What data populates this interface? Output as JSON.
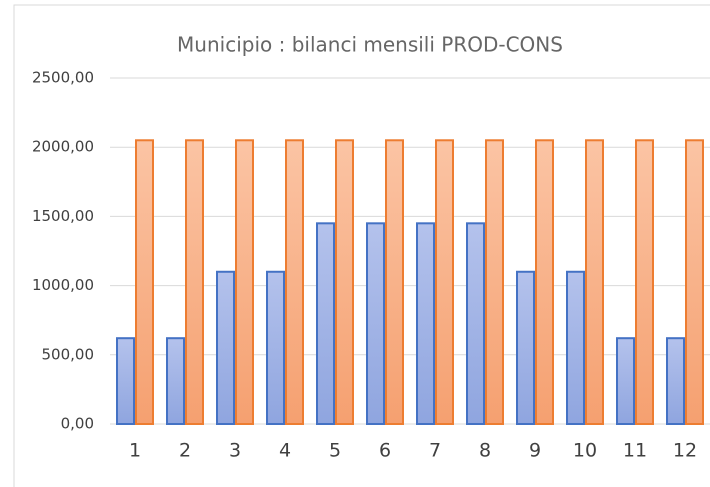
{
  "chart_data": {
    "type": "bar",
    "title": "Municipio : bilanci mensili PROD-CONS",
    "categories": [
      "1",
      "2",
      "3",
      "4",
      "5",
      "6",
      "7",
      "8",
      "9",
      "10",
      "11",
      "12"
    ],
    "series": [
      {
        "color": "#4472c4",
        "values": [
          620,
          620,
          1100,
          1100,
          1450,
          1450,
          1450,
          1450,
          1100,
          1100,
          620,
          620
        ]
      },
      {
        "color": "#ed7d31",
        "values": [
          2050,
          2050,
          2050,
          2050,
          2050,
          2050,
          2050,
          2050,
          2050,
          2050,
          2050,
          2050
        ]
      }
    ],
    "ylim": [
      0,
      2500
    ],
    "yticks": [
      {
        "value": 0,
        "label": "0,00"
      },
      {
        "value": 500,
        "label": "500,00"
      },
      {
        "value": 1000,
        "label": "1000,00"
      },
      {
        "value": 1500,
        "label": "1500,00"
      },
      {
        "value": 2000,
        "label": "2000,00"
      },
      {
        "value": 2500,
        "label": "2500,00"
      }
    ],
    "grid": true
  }
}
